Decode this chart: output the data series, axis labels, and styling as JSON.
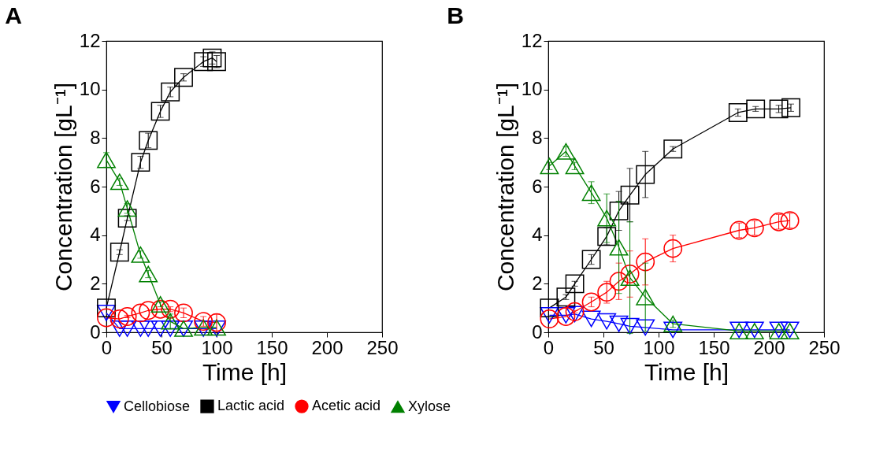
{
  "chart_data": [
    {
      "type": "line",
      "title": "A",
      "xlabel": "Time [h]",
      "ylabel": "Concentration [gL⁻¹]",
      "xlim": [
        0,
        250
      ],
      "xticks": [
        0,
        50,
        100,
        150,
        200,
        250
      ],
      "ylim": [
        0,
        12
      ],
      "yticks": [
        0,
        2,
        4,
        6,
        8,
        10,
        12
      ],
      "grid": false,
      "legend": "bottom",
      "series": [
        {
          "name": "Cellobiose",
          "color": "#0000ff",
          "marker": "triangle-down",
          "x": [
            0,
            12,
            19,
            31,
            38,
            49,
            58,
            70,
            88,
            100
          ],
          "values": [
            0.8,
            0.15,
            0.15,
            0.15,
            0.15,
            0.15,
            0.15,
            0.15,
            0.15,
            0.15
          ]
        },
        {
          "name": "Lactic acid",
          "color": "#000000",
          "marker": "square",
          "x": [
            0,
            12,
            19,
            31,
            38,
            49,
            58,
            70,
            88,
            96,
            100
          ],
          "values": [
            1.0,
            3.3,
            4.7,
            7.0,
            7.9,
            9.1,
            9.9,
            10.5,
            11.15,
            11.3,
            11.15
          ],
          "errors": [
            null,
            0.1,
            0.1,
            0.25,
            0.3,
            0.25,
            0.2,
            0.15,
            0.2,
            0.25,
            0.25
          ]
        },
        {
          "name": "Acetic acid",
          "color": "#ff0000",
          "marker": "circle",
          "x": [
            0,
            12,
            19,
            31,
            38,
            49,
            58,
            70,
            88,
            100
          ],
          "values": [
            0.6,
            0.55,
            0.65,
            0.8,
            0.9,
            0.95,
            0.95,
            0.8,
            0.45,
            0.4
          ],
          "errors": [
            null,
            null,
            0.05,
            null,
            null,
            null,
            0.1,
            0.2,
            0.2,
            0.35
          ]
        },
        {
          "name": "Xylose",
          "color": "#008000",
          "marker": "triangle",
          "x": [
            0,
            12,
            19,
            31,
            38,
            49,
            58,
            70,
            88,
            100
          ],
          "values": [
            7.1,
            6.2,
            5.1,
            3.2,
            2.4,
            1.15,
            0.45,
            0.15,
            0.2,
            0.2
          ],
          "errors": [
            0.3,
            0.15,
            0.2,
            0.15,
            0.15,
            0.1,
            0.3,
            null,
            null,
            null
          ]
        }
      ]
    },
    {
      "type": "line",
      "title": "B",
      "xlabel": "Time [h]",
      "ylabel": "Concentration [gL⁻¹]",
      "xlim": [
        0,
        250
      ],
      "xticks": [
        0,
        50,
        100,
        150,
        200,
        250
      ],
      "ylim": [
        0,
        12
      ],
      "yticks": [
        0,
        2,
        4,
        6,
        8,
        10,
        12
      ],
      "grid": false,
      "legend": "bottom",
      "series": [
        {
          "name": "Cellobiose",
          "color": "#0000ff",
          "marker": "triangle-down",
          "x": [
            1,
            16,
            24,
            39,
            53,
            64,
            74,
            88,
            113,
            173,
            187,
            209,
            219
          ],
          "values": [
            0.7,
            0.7,
            0.75,
            0.55,
            0.45,
            0.35,
            0.25,
            0.2,
            0.1,
            0.1,
            0.1,
            0.1,
            0.1
          ]
        },
        {
          "name": "Lactic acid",
          "color": "#000000",
          "marker": "square",
          "x": [
            1,
            16,
            24,
            39,
            53,
            64,
            74,
            88,
            113,
            172,
            188,
            209,
            220
          ],
          "values": [
            1.0,
            1.45,
            2.0,
            3.0,
            3.95,
            5.0,
            5.65,
            6.5,
            7.55,
            9.05,
            9.2,
            9.2,
            9.25
          ],
          "errors": [
            null,
            0.1,
            0.1,
            0.2,
            0.35,
            0.8,
            1.1,
            0.95,
            0.1,
            0.15,
            0.1,
            0.15,
            0.15
          ]
        },
        {
          "name": "Acetic acid",
          "color": "#ff0000",
          "marker": "circle",
          "x": [
            1,
            16,
            24,
            39,
            53,
            64,
            74,
            88,
            113,
            173,
            187,
            209,
            219
          ],
          "values": [
            0.55,
            0.65,
            0.85,
            1.25,
            1.65,
            2.1,
            2.4,
            2.9,
            3.45,
            4.2,
            4.3,
            4.55,
            4.6
          ],
          "errors": [
            null,
            null,
            0.05,
            0.2,
            0.45,
            0.75,
            0.95,
            0.95,
            0.55,
            0.3,
            0.3,
            0.3,
            0.3
          ]
        },
        {
          "name": "Xylose",
          "color": "#008000",
          "marker": "triangle",
          "x": [
            1,
            16,
            24,
            39,
            53,
            64,
            74,
            88,
            113,
            173,
            187,
            209,
            219
          ],
          "values": [
            6.85,
            7.45,
            6.85,
            5.75,
            4.7,
            3.5,
            2.25,
            1.45,
            0.35,
            0.05,
            0.05,
            0.05,
            0.05
          ],
          "errors": [
            0.15,
            0.2,
            0.15,
            0.45,
            1.0,
            1.9,
            2.3,
            1.4,
            0.15,
            null,
            null,
            null,
            null
          ]
        }
      ]
    }
  ]
}
